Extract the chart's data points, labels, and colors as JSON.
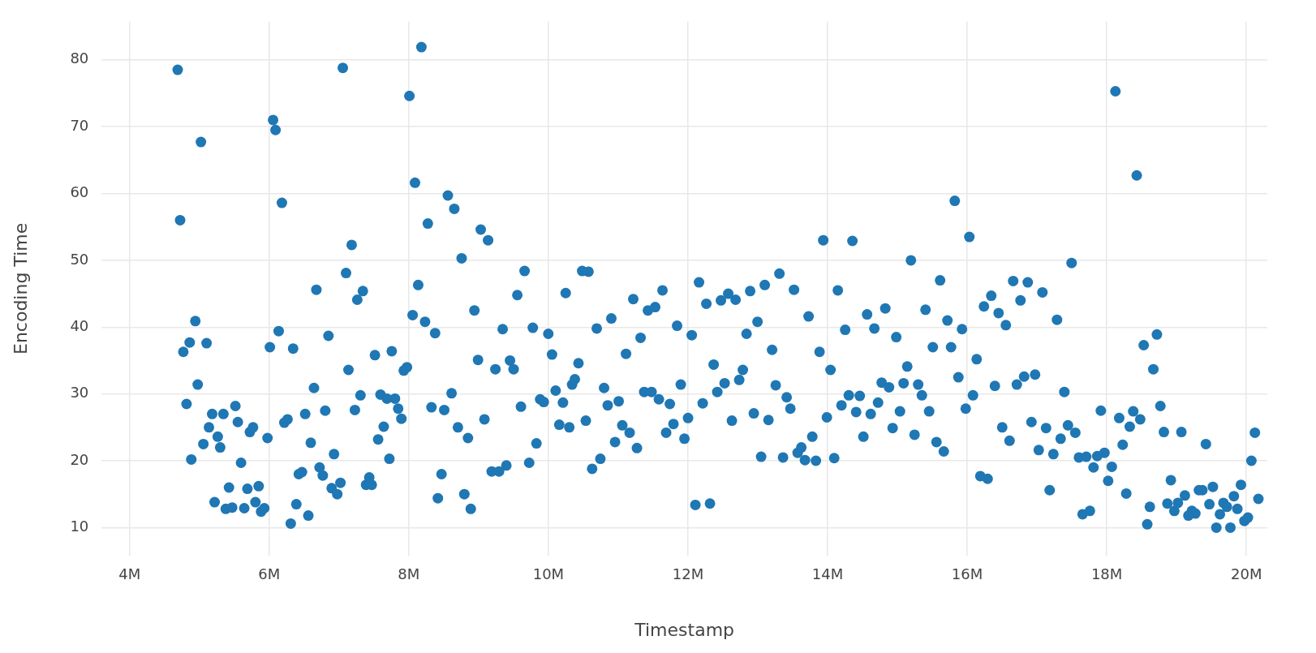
{
  "chart_data": {
    "type": "scatter",
    "xlabel": "Timestamp",
    "ylabel": "Encoding Time",
    "marker": "circle",
    "grid": true,
    "xlim": [
      3600000,
      20300000
    ],
    "ylim": [
      5.8,
      85.7
    ],
    "xticks": [
      {
        "value": 4000000,
        "label": "4M"
      },
      {
        "value": 6000000,
        "label": "6M"
      },
      {
        "value": 8000000,
        "label": "8M"
      },
      {
        "value": 10000000,
        "label": "10M"
      },
      {
        "value": 12000000,
        "label": "12M"
      },
      {
        "value": 14000000,
        "label": "14M"
      },
      {
        "value": 16000000,
        "label": "16M"
      },
      {
        "value": 18000000,
        "label": "18M"
      },
      {
        "value": 20000000,
        "label": "20M"
      }
    ],
    "yticks": [
      10,
      20,
      30,
      40,
      50,
      60,
      70,
      80
    ],
    "series": [
      {
        "color": "#1f77b4",
        "x": [
          4689000,
          4724000,
          4770000,
          4816000,
          4861000,
          4884000,
          4942000,
          4976000,
          5022000,
          5057000,
          5103000,
          5137000,
          5183000,
          5218000,
          5263000,
          5298000,
          5344000,
          5378000,
          5424000,
          5470000,
          5516000,
          5551000,
          5597000,
          5643000,
          5688000,
          5723000,
          5769000,
          5803000,
          5849000,
          5884000,
          5930000,
          5976000,
          6010000,
          6056000,
          6091000,
          6136000,
          6182000,
          6217000,
          6263000,
          6309000,
          6343000,
          6389000,
          6424000,
          6470000,
          6516000,
          6561000,
          6596000,
          6642000,
          6676000,
          6722000,
          6768000,
          6803000,
          6849000,
          6895000,
          6929000,
          6975000,
          7021000,
          7055000,
          7101000,
          7136000,
          7182000,
          7228000,
          7262000,
          7308000,
          7342000,
          7388000,
          7434000,
          7469000,
          7515000,
          7561000,
          7595000,
          7641000,
          7687000,
          7722000,
          7756000,
          7802000,
          7848000,
          7894000,
          7928000,
          7974000,
          8009000,
          8055000,
          8089000,
          8135000,
          8181000,
          8233000,
          8273000,
          8325000,
          8377000,
          8417000,
          8469000,
          8508000,
          8560000,
          8613000,
          8652000,
          8704000,
          8757000,
          8796000,
          8848000,
          8888000,
          8940000,
          8992000,
          9031000,
          9084000,
          9136000,
          9188000,
          9241000,
          9293000,
          9345000,
          9398000,
          9450000,
          9502000,
          9555000,
          9607000,
          9659000,
          9725000,
          9777000,
          9829000,
          9882000,
          9934000,
          9999000,
          10052000,
          10104000,
          10156000,
          10209000,
          10248000,
          10300000,
          10340000,
          10379000,
          10431000,
          10484000,
          10536000,
          10575000,
          10627000,
          10693000,
          10745000,
          10798000,
          10850000,
          10902000,
          10955000,
          11007000,
          11059000,
          11112000,
          11164000,
          11216000,
          11269000,
          11321000,
          11373000,
          11426000,
          11478000,
          11530000,
          11583000,
          11635000,
          11687000,
          11740000,
          11792000,
          11844000,
          11897000,
          11949000,
          12001000,
          12054000,
          12106000,
          12158000,
          12211000,
          12263000,
          12315000,
          12368000,
          12420000,
          12472000,
          12525000,
          12577000,
          12629000,
          12682000,
          12734000,
          12786000,
          12839000,
          12891000,
          12943000,
          12996000,
          13048000,
          13100000,
          13153000,
          13205000,
          13257000,
          13310000,
          13362000,
          13414000,
          13467000,
          13519000,
          13571000,
          13624000,
          13676000,
          13728000,
          13781000,
          13833000,
          13885000,
          13938000,
          13990000,
          14042000,
          14095000,
          14147000,
          14199000,
          14252000,
          14304000,
          14356000,
          14409000,
          14461000,
          14513000,
          14566000,
          14618000,
          14670000,
          14723000,
          14775000,
          14827000,
          14880000,
          14932000,
          14984000,
          15037000,
          15089000,
          15141000,
          15194000,
          15246000,
          15298000,
          15351000,
          15403000,
          15455000,
          15508000,
          15560000,
          15612000,
          15665000,
          15717000,
          15769000,
          15822000,
          15874000,
          15926000,
          15979000,
          16031000,
          16083000,
          16136000,
          16188000,
          16240000,
          16293000,
          16345000,
          16397000,
          16450000,
          16502000,
          16554000,
          16607000,
          16659000,
          16711000,
          16764000,
          16816000,
          16868000,
          16921000,
          16973000,
          17025000,
          17078000,
          17130000,
          17182000,
          17235000,
          17287000,
          17339000,
          17392000,
          17444000,
          17496000,
          17549000,
          17601000,
          17653000,
          17706000,
          17758000,
          17810000,
          17863000,
          17915000,
          17967000,
          18020000,
          18072000,
          18124000,
          18178000,
          18228000,
          18279000,
          18329000,
          18379000,
          18429000,
          18479000,
          18529000,
          18580000,
          18617000,
          18667000,
          18718000,
          18768000,
          18818000,
          18868000,
          18918000,
          18968000,
          19019000,
          19069000,
          19119000,
          19169000,
          19219000,
          19269000,
          19320000,
          19370000,
          19420000,
          19470000,
          19520000,
          19570000,
          19621000,
          19671000,
          19721000,
          19771000,
          19821000,
          19871000,
          19922000,
          19972000,
          20022000,
          20072000,
          20122000,
          20172000
        ],
        "values": [
          78.5,
          56,
          36.3,
          28.5,
          37.7,
          20.2,
          40.9,
          31.4,
          67.7,
          22.5,
          37.6,
          25,
          27,
          13.8,
          23.6,
          22,
          27,
          12.8,
          16,
          13,
          28.2,
          25.8,
          19.7,
          12.9,
          15.8,
          24.3,
          25,
          13.8,
          16.2,
          12.4,
          12.9,
          23.4,
          37,
          71,
          69.5,
          39.4,
          58.6,
          25.7,
          26.2,
          10.6,
          36.8,
          13.5,
          18,
          18.3,
          27,
          11.8,
          22.7,
          30.9,
          45.6,
          19,
          17.8,
          27.5,
          38.7,
          15.9,
          21,
          15,
          16.7,
          78.8,
          48.1,
          33.6,
          52.3,
          27.6,
          44.1,
          29.8,
          45.4,
          16.4,
          17.5,
          16.4,
          35.8,
          23.2,
          29.9,
          25.1,
          29.3,
          20.3,
          36.4,
          29.3,
          27.8,
          26.3,
          33.5,
          34,
          74.6,
          41.8,
          61.6,
          46.3,
          81.9,
          40.8,
          55.5,
          28,
          39.1,
          14.4,
          18,
          27.6,
          59.7,
          30.1,
          57.7,
          25,
          50.3,
          15,
          23.4,
          12.8,
          42.5,
          35.1,
          54.6,
          26.2,
          53,
          18.4,
          33.7,
          18.4,
          39.7,
          19.3,
          35,
          33.7,
          44.8,
          28.1,
          48.4,
          19.7,
          39.9,
          22.6,
          29.2,
          28.8,
          39,
          35.9,
          30.5,
          25.4,
          28.7,
          45.1,
          25,
          31.4,
          32.2,
          34.6,
          48.4,
          26,
          48.3,
          18.8,
          39.8,
          20.3,
          30.9,
          28.3,
          41.3,
          22.8,
          28.9,
          25.3,
          36,
          24.2,
          44.2,
          21.9,
          38.4,
          30.3,
          42.5,
          30.3,
          43,
          29.2,
          45.5,
          24.2,
          28.5,
          25.5,
          40.2,
          31.4,
          23.3,
          26.4,
          38.8,
          13.4,
          46.7,
          28.6,
          43.5,
          13.6,
          34.4,
          30.3,
          44,
          31.6,
          45,
          26,
          44.1,
          32.1,
          33.6,
          39,
          45.4,
          27.1,
          40.8,
          20.6,
          46.3,
          26.1,
          36.6,
          31.3,
          48,
          20.5,
          29.5,
          27.8,
          45.6,
          21.2,
          22,
          20.1,
          41.6,
          23.6,
          20,
          36.3,
          53,
          26.5,
          33.6,
          20.4,
          45.5,
          28.3,
          39.6,
          29.8,
          52.9,
          27.3,
          29.7,
          23.6,
          41.9,
          27,
          39.8,
          28.7,
          31.7,
          42.8,
          31,
          24.9,
          38.5,
          27.4,
          31.6,
          34.1,
          50,
          23.9,
          31.4,
          29.8,
          42.6,
          27.4,
          37,
          22.8,
          47,
          21.4,
          41,
          37,
          58.9,
          32.5,
          39.7,
          27.8,
          53.5,
          29.8,
          35.2,
          17.7,
          43.1,
          17.3,
          44.7,
          31.2,
          42.1,
          25,
          40.3,
          23,
          46.9,
          31.4,
          44,
          32.6,
          46.7,
          25.8,
          32.9,
          21.6,
          45.2,
          24.9,
          15.6,
          21,
          41.1,
          23.3,
          30.3,
          25.3,
          49.6,
          24.2,
          20.5,
          12,
          20.6,
          12.5,
          19,
          20.7,
          27.5,
          21.2,
          17,
          19.1,
          75.3,
          26.4,
          22.4,
          15.1,
          25.1,
          27.4,
          62.7,
          26.2,
          37.3,
          10.5,
          13.1,
          33.7,
          38.9,
          28.2,
          24.3,
          13.6,
          17.1,
          12.5,
          13.7,
          24.3,
          14.8,
          11.8,
          12.5,
          12.1,
          15.6,
          15.6,
          22.5,
          13.5,
          16.1,
          10,
          12,
          13.7,
          13.1,
          10,
          14.7,
          12.8,
          16.4,
          11,
          11.5,
          20,
          24.2,
          14.3
        ]
      }
    ]
  }
}
